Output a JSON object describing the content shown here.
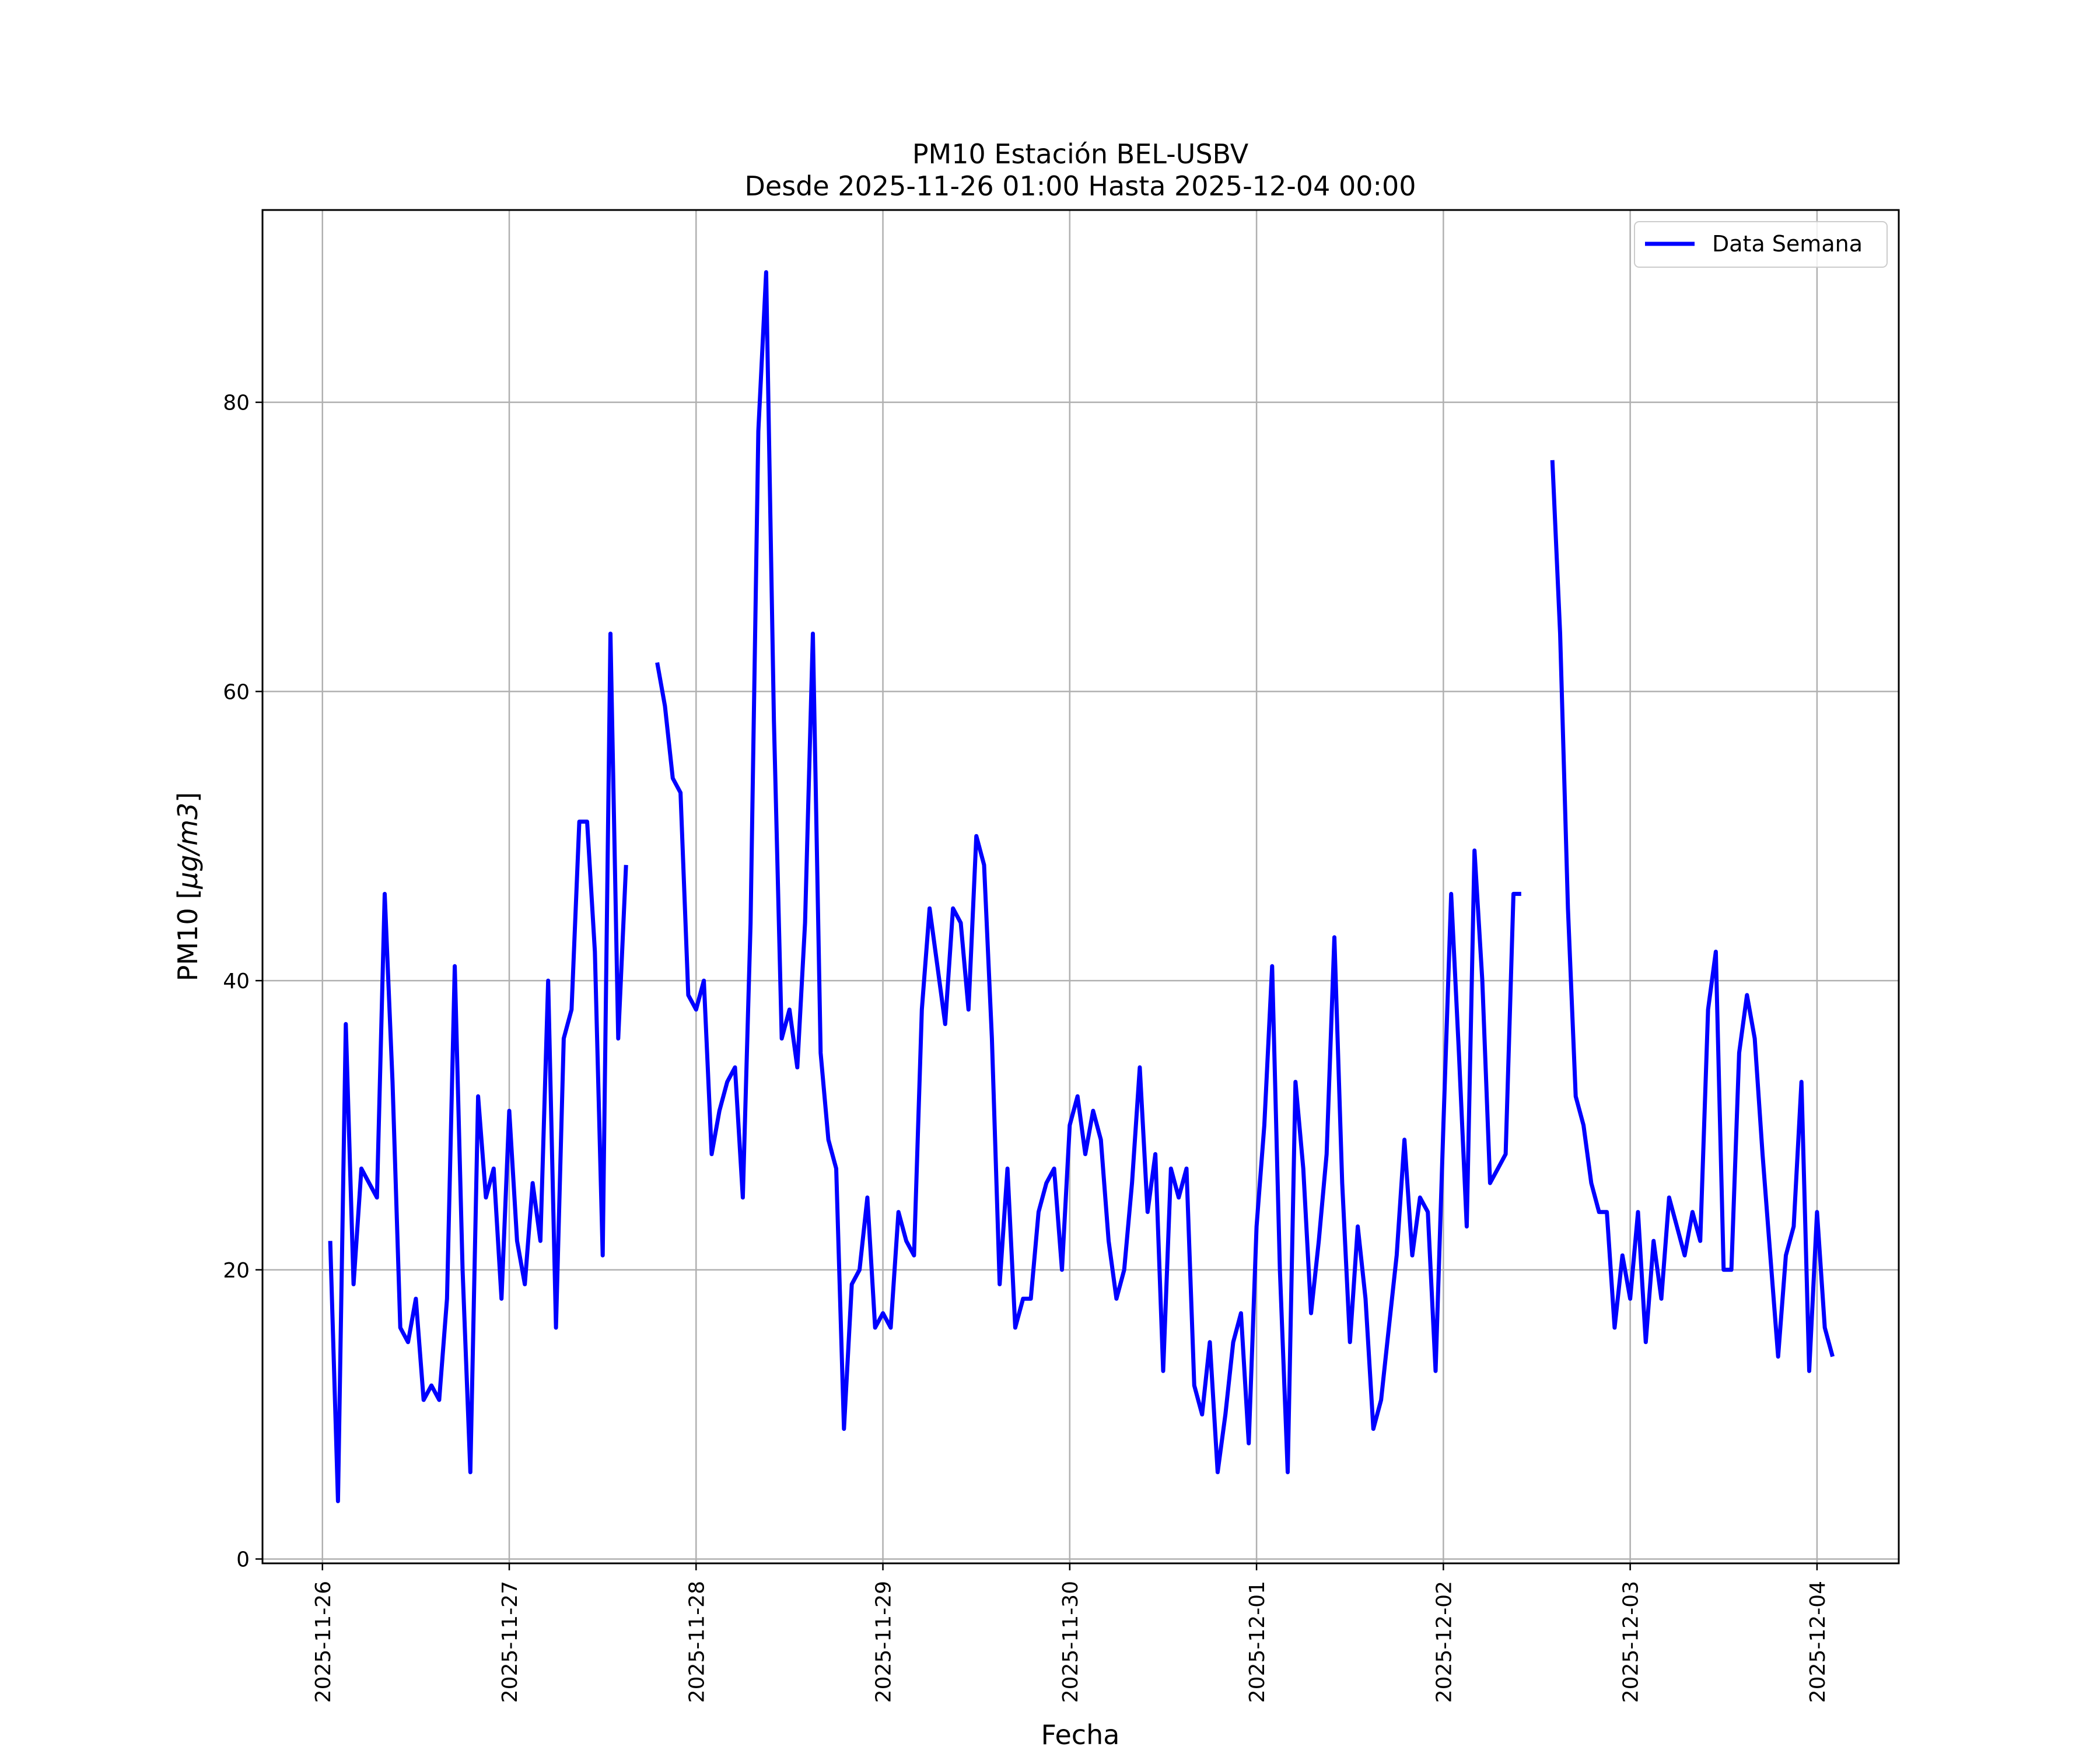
{
  "chart_data": {
    "type": "line",
    "title": "PM10 Estación BEL-USBV",
    "subtitle": "Desde 2025-11-26 01:00 Hasta 2025-12-04 00:00",
    "xlabel": "Fecha",
    "ylabel": "PM10 [µg/m3]",
    "ylabel_parts": {
      "prefix": "PM10 [",
      "math": "µg/m3",
      "suffix": "]"
    },
    "x_ticks": [
      "2025-11-26",
      "2025-11-27",
      "2025-11-28",
      "2025-11-29",
      "2025-11-30",
      "2025-12-01",
      "2025-12-02",
      "2025-12-03",
      "2025-12-04"
    ],
    "y_ticks": [
      "0",
      "20",
      "40",
      "60",
      "80"
    ],
    "xlim": [
      "2025-11-25 16:18",
      "2025-12-04 10:30"
    ],
    "ylim": [
      -0.3,
      93.3
    ],
    "grid": true,
    "legend_position": "top-right",
    "color": "#0000ff",
    "series": [
      {
        "name": "Data Semana",
        "time_start": "2025-11-26 01:00",
        "step": "1 hour",
        "values": [
          22,
          4,
          37,
          19,
          27,
          26,
          25,
          46,
          33,
          16,
          15,
          18,
          11,
          12,
          11,
          18,
          41,
          20,
          6,
          32,
          25,
          27,
          18,
          31,
          22,
          19,
          26,
          22,
          40,
          16,
          36,
          38,
          51,
          51,
          42,
          21,
          64,
          36,
          48,
          null,
          null,
          null,
          62,
          59,
          54,
          53,
          39,
          38,
          40,
          28,
          31,
          33,
          34,
          25,
          44,
          78,
          89,
          58,
          36,
          38,
          34,
          44,
          64,
          35,
          29,
          27,
          9,
          19,
          20,
          25,
          16,
          17,
          16,
          24,
          22,
          21,
          38,
          45,
          41,
          37,
          45,
          44,
          38,
          50,
          48,
          36,
          19,
          27,
          16,
          18,
          18,
          24,
          26,
          27,
          20,
          30,
          32,
          28,
          31,
          29,
          22,
          18,
          20,
          26,
          34,
          24,
          28,
          13,
          27,
          25,
          27,
          12,
          10,
          15,
          6,
          10,
          15,
          17,
          8,
          23,
          30,
          41,
          20,
          6,
          33,
          27,
          17,
          22,
          28,
          43,
          26,
          15,
          23,
          18,
          9,
          11,
          16,
          21,
          29,
          21,
          25,
          24,
          13,
          30,
          46,
          35,
          23,
          49,
          40,
          26,
          27,
          28,
          46,
          46,
          null,
          null,
          null,
          76,
          64,
          45,
          32,
          30,
          26,
          24,
          24,
          16,
          21,
          18,
          24,
          15,
          22,
          18,
          25,
          23,
          21,
          24,
          22,
          38,
          42,
          20,
          20,
          35,
          39,
          36,
          28,
          21,
          14,
          21,
          23,
          33,
          13,
          24,
          16,
          14
        ]
      }
    ]
  }
}
